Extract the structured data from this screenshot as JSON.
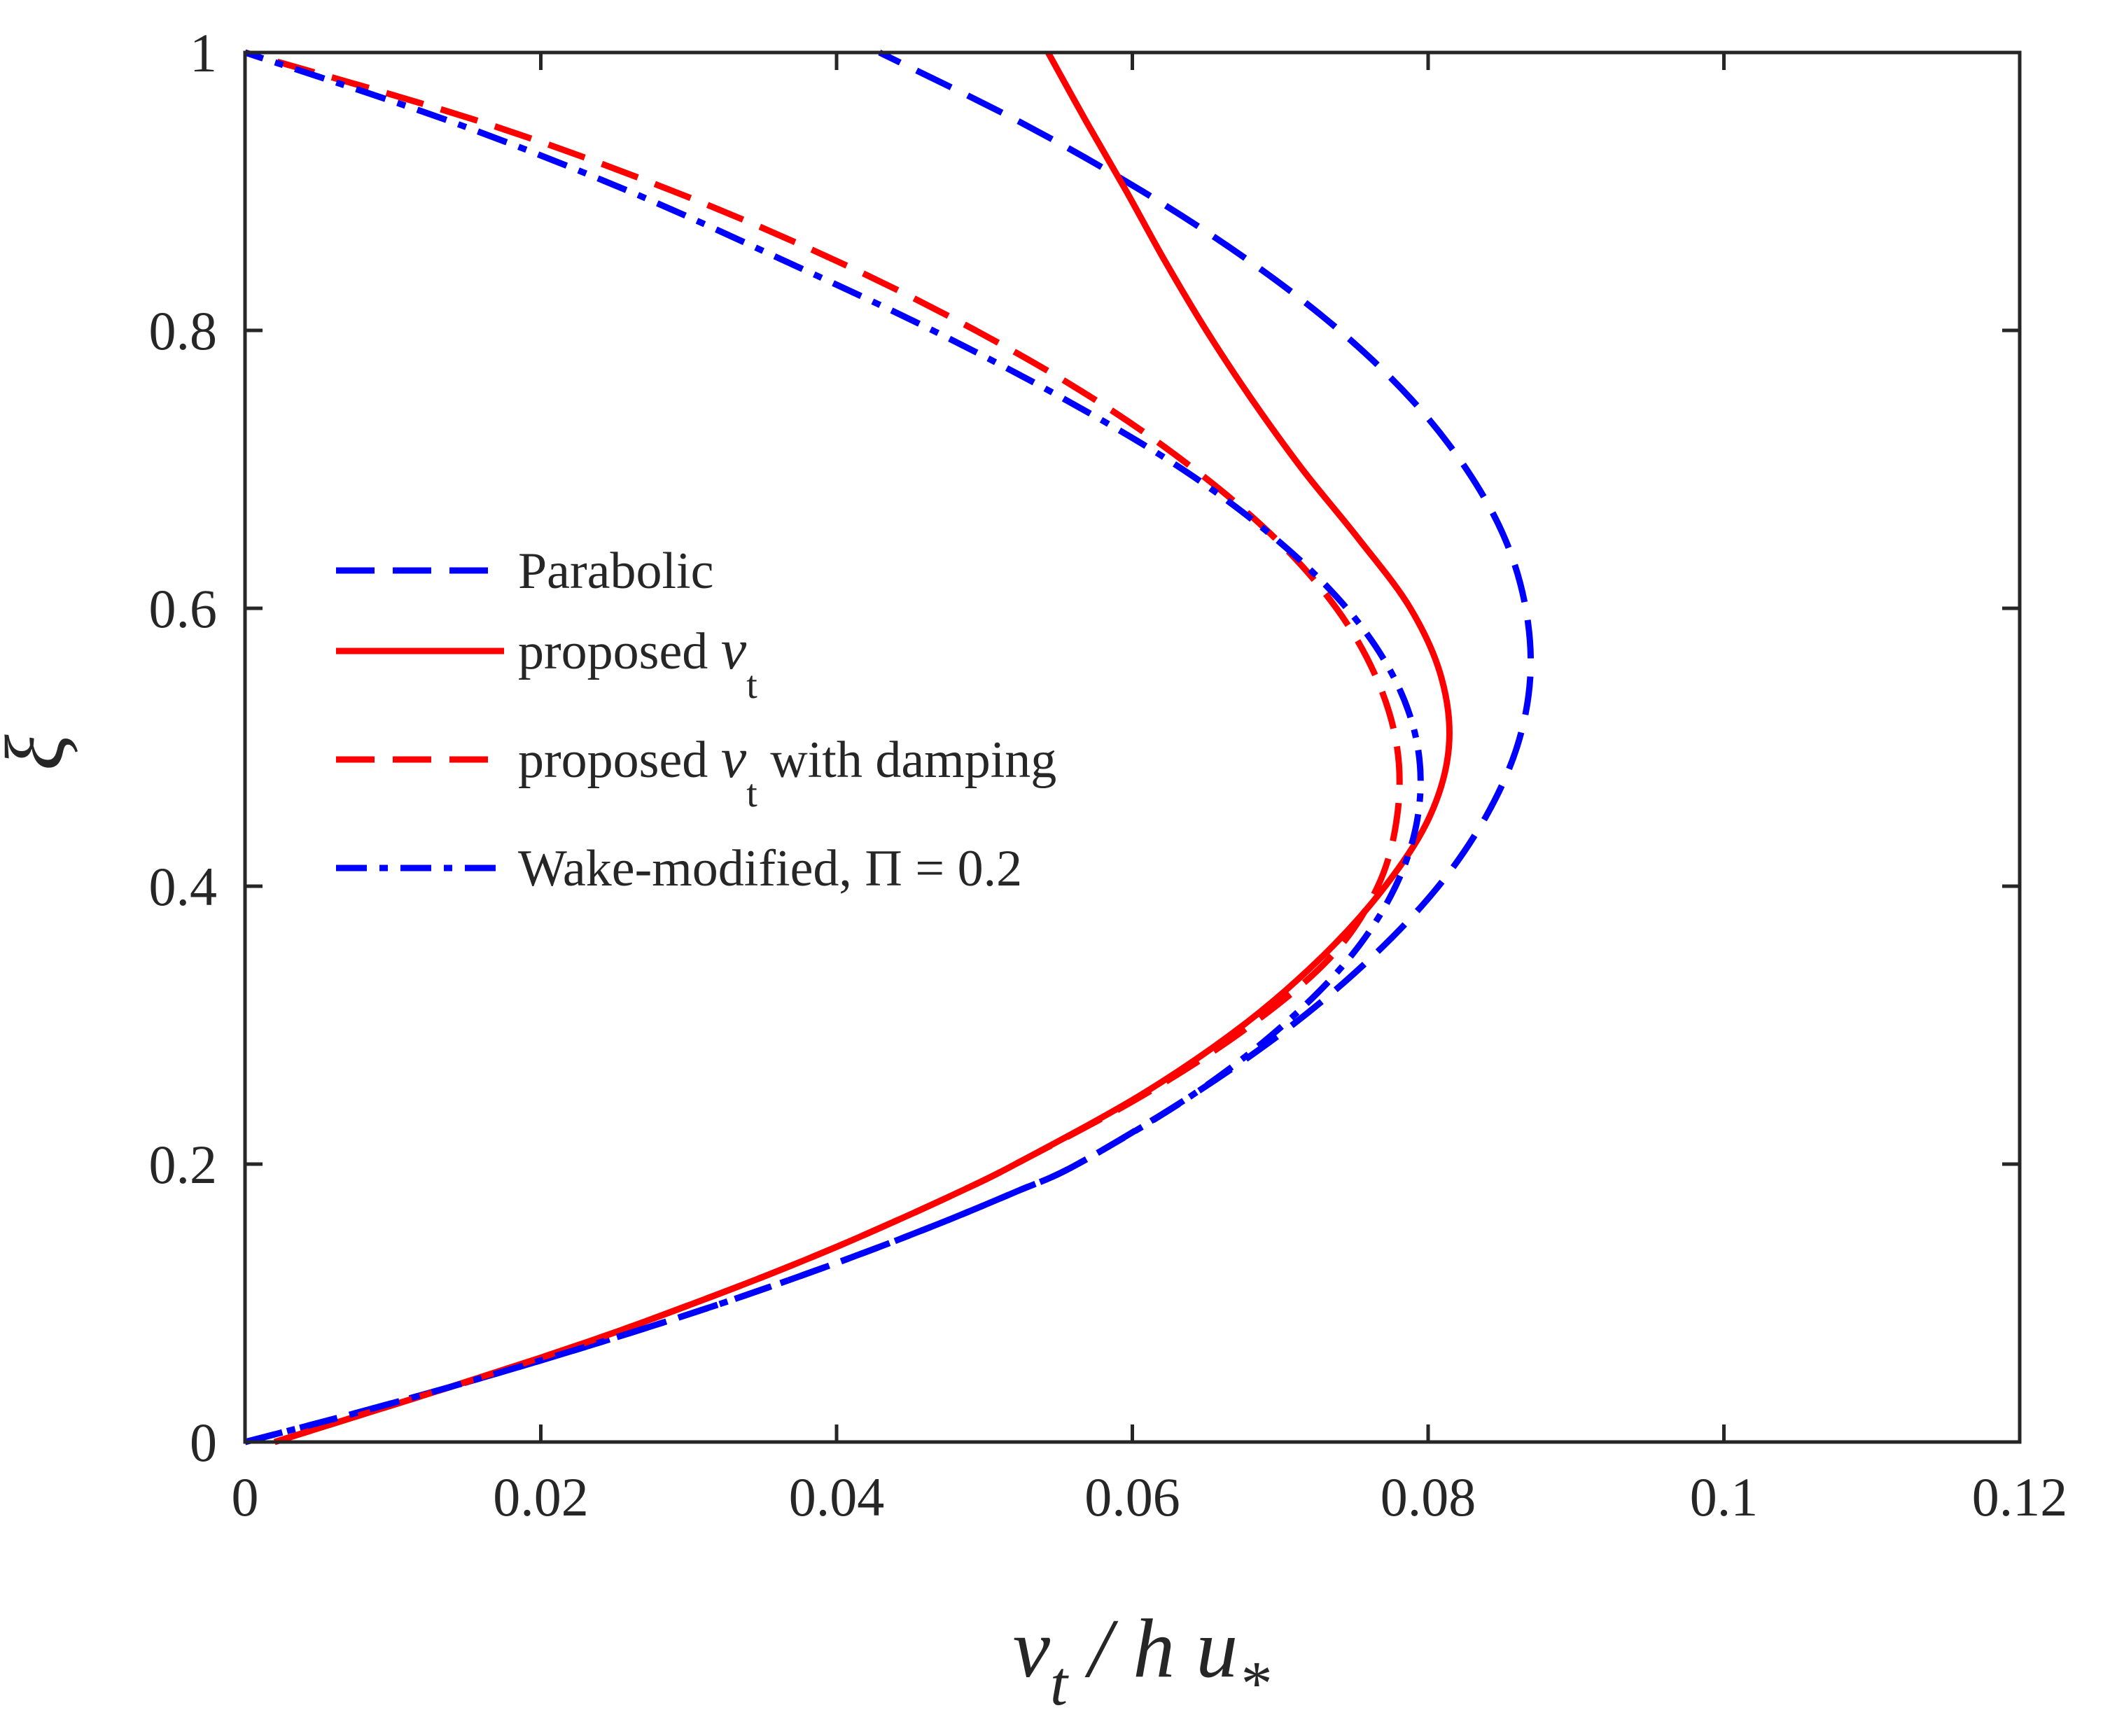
{
  "chart_data": {
    "type": "line",
    "title": "",
    "xlabel": {
      "nu": "ν",
      "sub": "t",
      "rest": " / h u",
      "sub2": "*"
    },
    "ylabel": "ξ",
    "xlim": [
      0,
      0.12
    ],
    "ylim": [
      0,
      1
    ],
    "xticks": [
      0,
      0.02,
      0.04,
      0.06,
      0.08,
      0.1,
      0.12
    ],
    "xtick_labels": [
      "0",
      "0.02",
      "0.04",
      "0.06",
      "0.08",
      "0.1",
      "0.12"
    ],
    "yticks": [
      0,
      0.2,
      0.4,
      0.6,
      0.8,
      1
    ],
    "ytick_labels": [
      "0",
      "0.2",
      "0.4",
      "0.6",
      "0.8",
      "1"
    ],
    "grid": false,
    "legend_position": "center-left",
    "series": [
      {
        "id": "parabolic",
        "legend": {
          "text": "Parabolic",
          "sub": "",
          "suffix": ""
        },
        "color": "#0000ff",
        "style": "dashed",
        "points": [
          [
            0,
            0
          ],
          [
            0.0072,
            0.02
          ],
          [
            0.014,
            0.04
          ],
          [
            0.0204,
            0.06
          ],
          [
            0.0265,
            0.08
          ],
          [
            0.0323,
            0.1
          ],
          [
            0.0377,
            0.12
          ],
          [
            0.0428,
            0.14
          ],
          [
            0.0476,
            0.16
          ],
          [
            0.0521,
            0.18
          ],
          [
            0.0563,
            0.2
          ],
          [
            0.0641,
            0.25
          ],
          [
            0.0708,
            0.3
          ],
          [
            0.0763,
            0.35
          ],
          [
            0.0807,
            0.4
          ],
          [
            0.0839,
            0.45
          ],
          [
            0.086,
            0.5
          ],
          [
            0.0869,
            0.55
          ],
          [
            0.0866,
            0.6
          ],
          [
            0.0852,
            0.65
          ],
          [
            0.0826,
            0.7
          ],
          [
            0.0789,
            0.75
          ],
          [
            0.074,
            0.8
          ],
          [
            0.0679,
            0.85
          ],
          [
            0.0607,
            0.9
          ],
          [
            0.0524,
            0.95
          ],
          [
            0.0429,
            1.0
          ]
        ]
      },
      {
        "id": "proposed",
        "legend": {
          "text": "proposed ",
          "sub": "t",
          "suffix": ""
        },
        "color": "#ff0000",
        "style": "solid",
        "points": [
          [
            0.002,
            0
          ],
          [
            0.008,
            0.02
          ],
          [
            0.014,
            0.04
          ],
          [
            0.0198,
            0.06
          ],
          [
            0.0253,
            0.08
          ],
          [
            0.0304,
            0.1
          ],
          [
            0.0353,
            0.12
          ],
          [
            0.0399,
            0.14
          ],
          [
            0.0442,
            0.16
          ],
          [
            0.0483,
            0.18
          ],
          [
            0.0521,
            0.2
          ],
          [
            0.0606,
            0.25
          ],
          [
            0.0675,
            0.3
          ],
          [
            0.0729,
            0.35
          ],
          [
            0.0771,
            0.4
          ],
          [
            0.0801,
            0.45
          ],
          [
            0.0814,
            0.5
          ],
          [
            0.0809,
            0.55
          ],
          [
            0.0788,
            0.6
          ],
          [
            0.0753,
            0.65
          ],
          [
            0.0715,
            0.7
          ],
          [
            0.0681,
            0.75
          ],
          [
            0.065,
            0.8
          ],
          [
            0.0622,
            0.85
          ],
          [
            0.0596,
            0.9
          ],
          [
            0.0569,
            0.95
          ],
          [
            0.0543,
            1.0
          ]
        ]
      },
      {
        "id": "proposed-damping",
        "legend": {
          "text": "proposed ",
          "sub": "t",
          "suffix": " with damping"
        },
        "color": "#ff0000",
        "style": "dashed",
        "points": [
          [
            0.002,
            0
          ],
          [
            0.008,
            0.02
          ],
          [
            0.014,
            0.04
          ],
          [
            0.0198,
            0.06
          ],
          [
            0.0253,
            0.08
          ],
          [
            0.0304,
            0.1
          ],
          [
            0.0353,
            0.12
          ],
          [
            0.0399,
            0.14
          ],
          [
            0.0442,
            0.16
          ],
          [
            0.0483,
            0.18
          ],
          [
            0.0521,
            0.2
          ],
          [
            0.0608,
            0.25
          ],
          [
            0.068,
            0.3
          ],
          [
            0.0735,
            0.35
          ],
          [
            0.0766,
            0.4
          ],
          [
            0.0779,
            0.45
          ],
          [
            0.0779,
            0.5
          ],
          [
            0.0765,
            0.55
          ],
          [
            0.0738,
            0.6
          ],
          [
            0.0697,
            0.65
          ],
          [
            0.0642,
            0.7
          ],
          [
            0.0575,
            0.75
          ],
          [
            0.0494,
            0.8
          ],
          [
            0.04,
            0.85
          ],
          [
            0.029,
            0.9
          ],
          [
            0.016,
            0.95
          ],
          [
            0.0,
            1.0
          ]
        ]
      },
      {
        "id": "wake-modified",
        "legend": {
          "text": "Wake-modified, Π = 0.2",
          "sub": "",
          "suffix": ""
        },
        "color": "#0000ff",
        "style": "dashdot",
        "points": [
          [
            0,
            0
          ],
          [
            0.0072,
            0.02
          ],
          [
            0.014,
            0.04
          ],
          [
            0.0204,
            0.06
          ],
          [
            0.0265,
            0.08
          ],
          [
            0.0323,
            0.1
          ],
          [
            0.0377,
            0.12
          ],
          [
            0.0428,
            0.14
          ],
          [
            0.0476,
            0.16
          ],
          [
            0.0521,
            0.18
          ],
          [
            0.0563,
            0.2
          ],
          [
            0.0641,
            0.25
          ],
          [
            0.0702,
            0.3
          ],
          [
            0.0748,
            0.35
          ],
          [
            0.0778,
            0.4
          ],
          [
            0.0793,
            0.45
          ],
          [
            0.0793,
            0.5
          ],
          [
            0.0777,
            0.55
          ],
          [
            0.0745,
            0.6
          ],
          [
            0.0697,
            0.65
          ],
          [
            0.0634,
            0.7
          ],
          [
            0.0555,
            0.75
          ],
          [
            0.0465,
            0.8
          ],
          [
            0.0365,
            0.85
          ],
          [
            0.026,
            0.9
          ],
          [
            0.014,
            0.95
          ],
          [
            0.0,
            1.0
          ]
        ]
      }
    ]
  }
}
